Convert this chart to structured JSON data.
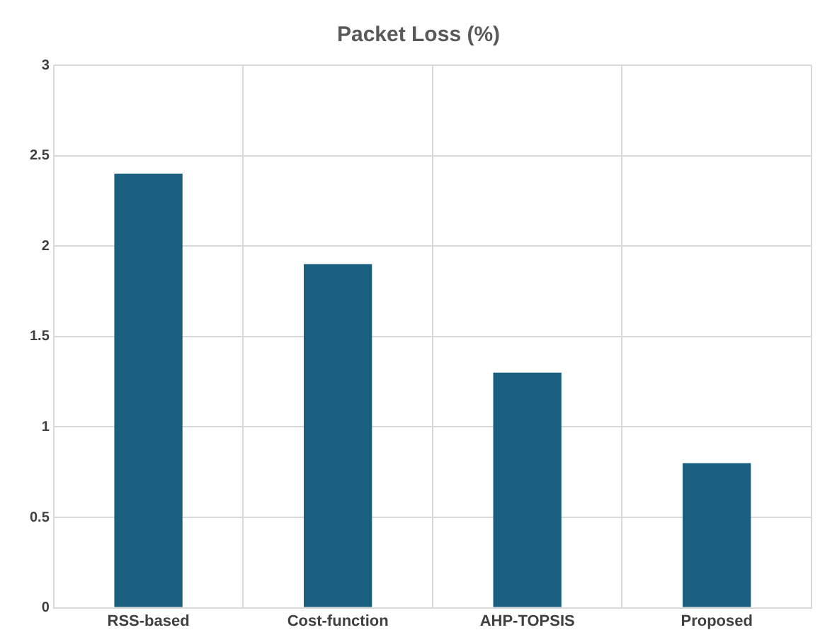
{
  "chart_data": {
    "type": "bar",
    "title": "Packet Loss (%)",
    "categories": [
      "RSS-based",
      "Cost-function",
      "AHP-TOPSIS",
      "Proposed"
    ],
    "values": [
      2.4,
      1.9,
      1.3,
      0.8
    ],
    "color": "#1a5f80",
    "ylim": [
      0,
      3
    ],
    "yticks": [
      0,
      0.5,
      1,
      1.5,
      2,
      2.5,
      3
    ],
    "grid": true,
    "legend": false
  }
}
